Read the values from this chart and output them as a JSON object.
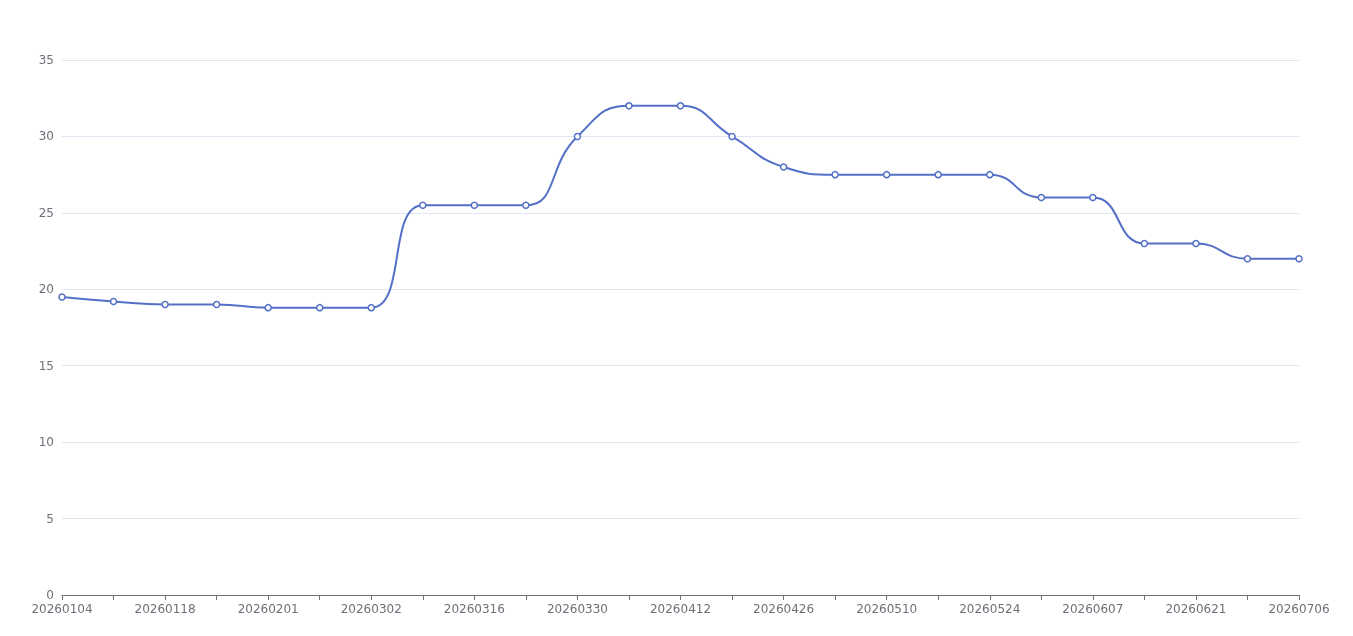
{
  "chart_data": {
    "type": "line",
    "categories": [
      "20260104",
      null,
      "20260118",
      null,
      "20260201",
      null,
      "20260302",
      null,
      "20260316",
      null,
      "20260330",
      null,
      "20260412",
      null,
      "20260426",
      null,
      "20260510",
      null,
      "20260524",
      null,
      "20260607",
      null,
      "20260621",
      null,
      "20260706"
    ],
    "values": [
      19.5,
      19.2,
      19.0,
      19.0,
      18.8,
      18.8,
      18.8,
      25.5,
      25.5,
      25.5,
      30,
      32,
      32,
      30,
      28,
      27.5,
      27.5,
      27.5,
      27.5,
      26,
      26,
      23,
      23,
      22,
      22
    ],
    "color": "#5470c6",
    "ylim": [
      0,
      35
    ],
    "yticks": [
      0,
      5,
      10,
      15,
      20,
      25,
      30,
      35
    ],
    "grid": "y",
    "marker": "circle"
  }
}
